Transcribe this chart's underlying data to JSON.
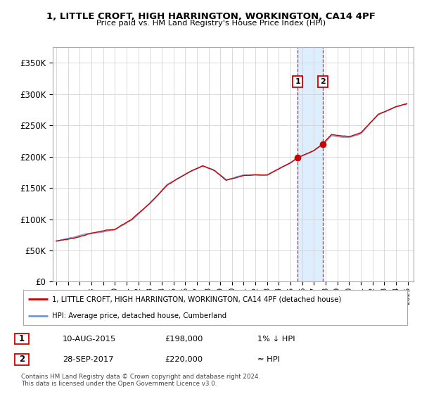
{
  "title_line1": "1, LITTLE CROFT, HIGH HARRINGTON, WORKINGTON, CA14 4PF",
  "title_line2": "Price paid vs. HM Land Registry's House Price Index (HPI)",
  "ylabel_ticks": [
    "£0",
    "£50K",
    "£100K",
    "£150K",
    "£200K",
    "£250K",
    "£300K",
    "£350K"
  ],
  "ytick_values": [
    0,
    50000,
    100000,
    150000,
    200000,
    250000,
    300000,
    350000
  ],
  "ylim": [
    0,
    375000
  ],
  "xlim_start": 1994.7,
  "xlim_end": 2025.5,
  "transaction1": {
    "date": "10-AUG-2015",
    "price": 198000,
    "label": "1",
    "x": 2015.6
  },
  "transaction2": {
    "date": "28-SEP-2017",
    "price": 220000,
    "label": "2",
    "x": 2017.75
  },
  "hpi_color": "#7799cc",
  "price_color": "#cc0000",
  "highlight_color": "#ddeeff",
  "legend_line1": "1, LITTLE CROFT, HIGH HARRINGTON, WORKINGTON, CA14 4PF (detached house)",
  "legend_line2": "HPI: Average price, detached house, Cumberland",
  "table_row1": [
    "1",
    "10-AUG-2015",
    "£198,000",
    "1% ↓ HPI"
  ],
  "table_row2": [
    "2",
    "28-SEP-2017",
    "£220,000",
    "≈ HPI"
  ],
  "footer": "Contains HM Land Registry data © Crown copyright and database right 2024.\nThis data is licensed under the Open Government Licence v3.0.",
  "background_color": "#ffffff",
  "grid_color": "#cccccc"
}
